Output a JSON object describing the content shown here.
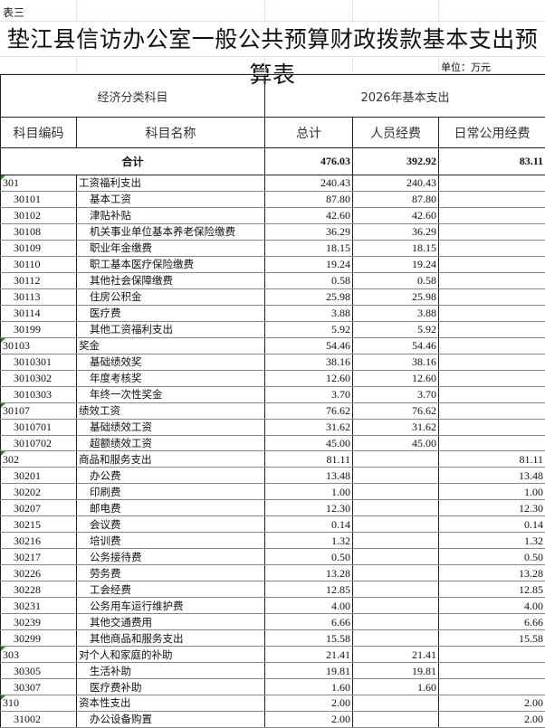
{
  "sheet_label": "表三",
  "title": "垫江县信访办公室一般公共预算财政拨款基本支出预算表",
  "unit": "单位：万元",
  "header": {
    "group_left": "经济分类科目",
    "group_right": "2026年基本支出",
    "col_code": "科目编码",
    "col_name": "科目名称",
    "col_total": "总计",
    "col_personnel": "人员经费",
    "col_daily": "日常公用经费"
  },
  "total_row": {
    "label": "合计",
    "total": "476.03",
    "personnel": "392.92",
    "daily": "83.11"
  },
  "rows": [
    {
      "code": "301",
      "name": "工资福利支出",
      "total": "240.43",
      "personnel": "240.43",
      "daily": "",
      "level": 0
    },
    {
      "code": "30101",
      "name": "基本工资",
      "total": "87.80",
      "personnel": "87.80",
      "daily": "",
      "level": 1
    },
    {
      "code": "30102",
      "name": "津贴补贴",
      "total": "42.60",
      "personnel": "42.60",
      "daily": "",
      "level": 1
    },
    {
      "code": "30108",
      "name": "机关事业单位基本养老保险缴费",
      "total": "36.29",
      "personnel": "36.29",
      "daily": "",
      "level": 1
    },
    {
      "code": "30109",
      "name": "职业年金缴费",
      "total": "18.15",
      "personnel": "18.15",
      "daily": "",
      "level": 1
    },
    {
      "code": "30110",
      "name": "职工基本医疗保险缴费",
      "total": "19.24",
      "personnel": "19.24",
      "daily": "",
      "level": 1
    },
    {
      "code": "30112",
      "name": "其他社会保障缴费",
      "total": "0.58",
      "personnel": "0.58",
      "daily": "",
      "level": 1
    },
    {
      "code": "30113",
      "name": "住房公积金",
      "total": "25.98",
      "personnel": "25.98",
      "daily": "",
      "level": 1
    },
    {
      "code": "30114",
      "name": "医疗费",
      "total": "3.88",
      "personnel": "3.88",
      "daily": "",
      "level": 1
    },
    {
      "code": "30199",
      "name": "其他工资福利支出",
      "total": "5.92",
      "personnel": "5.92",
      "daily": "",
      "level": 1
    },
    {
      "code": "30103",
      "name": "奖金",
      "total": "54.46",
      "personnel": "54.46",
      "daily": "",
      "level": 0
    },
    {
      "code": "3010301",
      "name": "基础绩效奖",
      "total": "38.16",
      "personnel": "38.16",
      "daily": "",
      "level": 1
    },
    {
      "code": "3010302",
      "name": "年度考核奖",
      "total": "12.60",
      "personnel": "12.60",
      "daily": "",
      "level": 1
    },
    {
      "code": "3010303",
      "name": "年终一次性奖金",
      "total": "3.70",
      "personnel": "3.70",
      "daily": "",
      "level": 1
    },
    {
      "code": "30107",
      "name": "绩效工资",
      "total": "76.62",
      "personnel": "76.62",
      "daily": "",
      "level": 0
    },
    {
      "code": "3010701",
      "name": "基础绩效工资",
      "total": "31.62",
      "personnel": "31.62",
      "daily": "",
      "level": 1
    },
    {
      "code": "3010702",
      "name": "超额绩效工资",
      "total": "45.00",
      "personnel": "45.00",
      "daily": "",
      "level": 1
    },
    {
      "code": "302",
      "name": "商品和服务支出",
      "total": "81.11",
      "personnel": "",
      "daily": "81.11",
      "level": 0
    },
    {
      "code": "30201",
      "name": "办公费",
      "total": "13.48",
      "personnel": "",
      "daily": "13.48",
      "level": 1
    },
    {
      "code": "30202",
      "name": "印刷费",
      "total": "1.00",
      "personnel": "",
      "daily": "1.00",
      "level": 1
    },
    {
      "code": "30207",
      "name": "邮电费",
      "total": "12.30",
      "personnel": "",
      "daily": "12.30",
      "level": 1
    },
    {
      "code": "30215",
      "name": "会议费",
      "total": "0.14",
      "personnel": "",
      "daily": "0.14",
      "level": 1
    },
    {
      "code": "30216",
      "name": "培训费",
      "total": "1.32",
      "personnel": "",
      "daily": "1.32",
      "level": 1
    },
    {
      "code": "30217",
      "name": "公务接待费",
      "total": "0.50",
      "personnel": "",
      "daily": "0.50",
      "level": 1
    },
    {
      "code": "30226",
      "name": "劳务费",
      "total": "13.28",
      "personnel": "",
      "daily": "13.28",
      "level": 1
    },
    {
      "code": "30228",
      "name": "工会经费",
      "total": "12.85",
      "personnel": "",
      "daily": "12.85",
      "level": 1
    },
    {
      "code": "30231",
      "name": "公务用车运行维护费",
      "total": "4.00",
      "personnel": "",
      "daily": "4.00",
      "level": 1
    },
    {
      "code": "30239",
      "name": "其他交通费用",
      "total": "6.66",
      "personnel": "",
      "daily": "6.66",
      "level": 1
    },
    {
      "code": "30299",
      "name": "其他商品和服务支出",
      "total": "15.58",
      "personnel": "",
      "daily": "15.58",
      "level": 1
    },
    {
      "code": "303",
      "name": "对个人和家庭的补助",
      "total": "21.41",
      "personnel": "21.41",
      "daily": "",
      "level": 0
    },
    {
      "code": "30305",
      "name": "生活补助",
      "total": "19.81",
      "personnel": "19.81",
      "daily": "",
      "level": 1
    },
    {
      "code": "30307",
      "name": "医疗费补助",
      "total": "1.60",
      "personnel": "1.60",
      "daily": "",
      "level": 1
    },
    {
      "code": "310",
      "name": "资本性支出",
      "total": "2.00",
      "personnel": "",
      "daily": "2.00",
      "level": 0
    },
    {
      "code": "31002",
      "name": "办公设备购置",
      "total": "2.00",
      "personnel": "",
      "daily": "2.00",
      "level": 1
    }
  ]
}
